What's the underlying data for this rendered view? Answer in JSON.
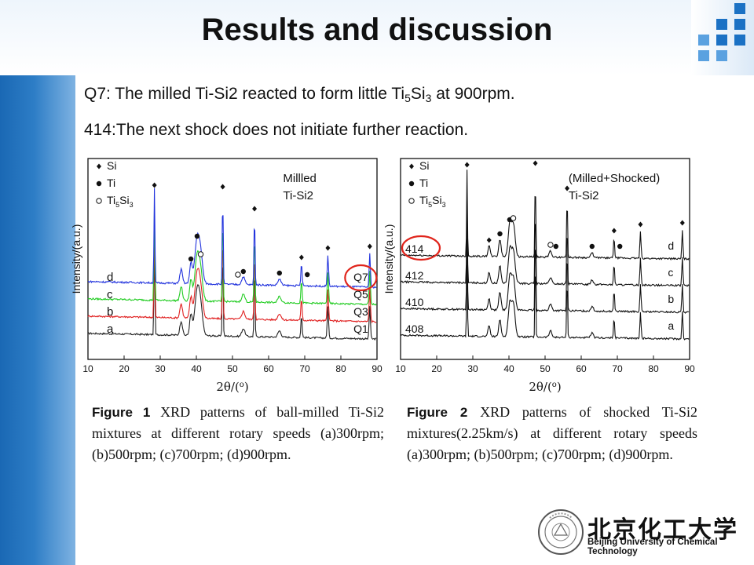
{
  "slide": {
    "title": "Results and discussion",
    "line1_pre": "Q7: The milled Ti-Si2 reacted to form little Ti",
    "line1_sub1": "5",
    "line1_mid": "Si",
    "line1_sub2": "3",
    "line1_post": " at 900rpm.",
    "line2": "414:The next shock does not initiate further reaction.",
    "accent_color": "#1b71c4"
  },
  "caption1": {
    "fig": "Figure 1",
    "text": " XRD patterns of ball-milled Ti-Si2 mixtures at different rotary speeds (a)300rpm; (b)500rpm; (c)700rpm; (d)900rpm."
  },
  "caption2": {
    "fig": "Figure 2",
    "text": " XRD patterns of shocked Ti-Si2 mixtures(2.25km/s) at different rotary speeds (a)300rpm; (b)500rpm; (c)700rpm; (d)900rpm."
  },
  "footer": {
    "school_cn": "北京化工大学",
    "school_en": "Beijing University of Chemical Technology"
  },
  "chart_data": [
    {
      "type": "line",
      "ylabel": "Intensity/(a.u.)",
      "xlim": [
        10,
        90
      ],
      "xticks": [
        10,
        20,
        30,
        40,
        50,
        60,
        70,
        80,
        90
      ],
      "legend": [
        {
          "marker": "diamond",
          "label": "Si"
        },
        {
          "marker": "dot",
          "label": "Ti"
        },
        {
          "marker": "circle",
          "label": "Ti5Si3",
          "label_main": "Ti",
          "label_sub1": "5",
          "label_mid": "Si",
          "label_sub2": "3"
        }
      ],
      "annotation_lines": [
        "Millled",
        "Ti-Si2"
      ],
      "series": [
        {
          "name": "a",
          "label_right": "Q1",
          "color": "#222222",
          "offset": 0
        },
        {
          "name": "b",
          "label_right": "Q3",
          "color": "#e02020",
          "offset": 1
        },
        {
          "name": "c",
          "label_right": "Q5",
          "color": "#22cc22",
          "offset": 2
        },
        {
          "name": "d",
          "label_right": "Q7",
          "color": "#2233dd",
          "offset": 3
        }
      ],
      "circled": "Q7",
      "markers": [
        {
          "x": 28.4,
          "type": "diamond"
        },
        {
          "x": 38.5,
          "type": "dot"
        },
        {
          "x": 40.2,
          "type": "dot"
        },
        {
          "x": 41.2,
          "type": "circle"
        },
        {
          "x": 47.3,
          "type": "diamond"
        },
        {
          "x": 51.5,
          "type": "circle"
        },
        {
          "x": 53.0,
          "type": "dot"
        },
        {
          "x": 56.1,
          "type": "diamond"
        },
        {
          "x": 63.0,
          "type": "dot"
        },
        {
          "x": 69.1,
          "type": "diamond"
        },
        {
          "x": 70.7,
          "type": "dot"
        },
        {
          "x": 76.4,
          "type": "diamond"
        },
        {
          "x": 88.0,
          "type": "diamond"
        }
      ]
    },
    {
      "type": "line",
      "ylabel": "Intensity/(a.u.)",
      "xlim": [
        10,
        90
      ],
      "xticks": [
        10,
        20,
        30,
        40,
        50,
        60,
        70,
        80,
        90
      ],
      "legend": [
        {
          "marker": "diamond",
          "label": "Si"
        },
        {
          "marker": "dot",
          "label": "Ti"
        },
        {
          "marker": "circle",
          "label": "Ti5Si3",
          "label_main": "Ti",
          "label_sub1": "5",
          "label_mid": "Si",
          "label_sub2": "3"
        }
      ],
      "annotation_lines": [
        "(Milled+Shocked)",
        "Ti-Si2"
      ],
      "series": [
        {
          "name": "a",
          "label_left": "408",
          "color": "#111111",
          "offset": 0
        },
        {
          "name": "b",
          "label_left": "410",
          "color": "#111111",
          "offset": 1
        },
        {
          "name": "c",
          "label_left": "412",
          "color": "#111111",
          "offset": 2
        },
        {
          "name": "d",
          "label_left": "414",
          "color": "#111111",
          "offset": 3
        }
      ],
      "circled": "414",
      "markers": [
        {
          "x": 28.4,
          "type": "diamond"
        },
        {
          "x": 34.5,
          "type": "diamond"
        },
        {
          "x": 37.5,
          "type": "dot"
        },
        {
          "x": 40.2,
          "type": "dot"
        },
        {
          "x": 41.2,
          "type": "circle"
        },
        {
          "x": 47.3,
          "type": "diamond"
        },
        {
          "x": 51.5,
          "type": "circle"
        },
        {
          "x": 53.0,
          "type": "dot"
        },
        {
          "x": 56.1,
          "type": "diamond"
        },
        {
          "x": 63.0,
          "type": "dot"
        },
        {
          "x": 69.1,
          "type": "diamond"
        },
        {
          "x": 70.7,
          "type": "dot"
        },
        {
          "x": 76.4,
          "type": "diamond"
        },
        {
          "x": 88.0,
          "type": "diamond"
        }
      ]
    }
  ]
}
